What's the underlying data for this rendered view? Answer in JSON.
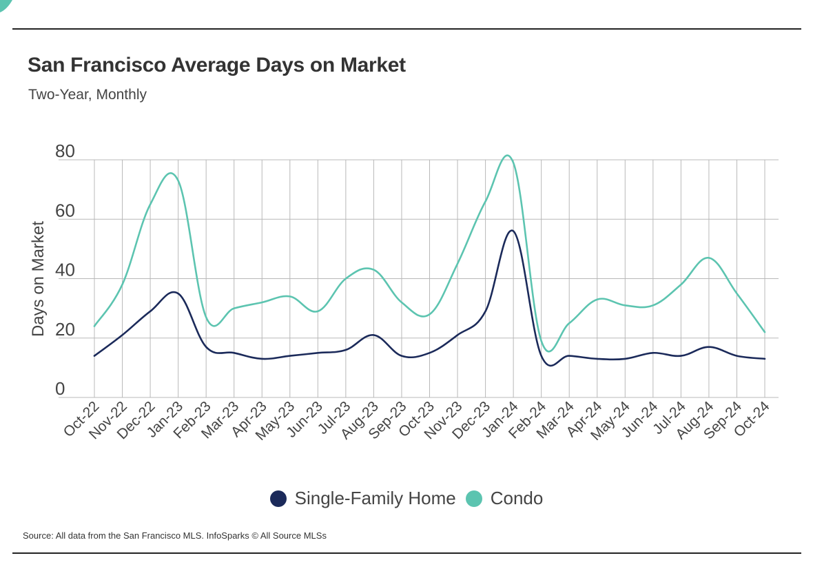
{
  "header": {
    "title": "San Francisco Average Days on Market",
    "subtitle": "Two-Year, Monthly"
  },
  "footer": {
    "source": "Source:  All data from the San Francisco MLS. InfoSparks © All Source MLSs"
  },
  "colors": {
    "single_family": "#1b2a5a",
    "condo": "#5cc4b0",
    "grid": "#b8b8b8",
    "corner_accent": "#5cc4b0"
  },
  "chart_data": {
    "type": "line",
    "title": "San Francisco Average Days on Market",
    "subtitle": "Two-Year, Monthly",
    "xlabel": "",
    "ylabel": "Days on Market",
    "ylim": [
      0,
      80
    ],
    "yticks": [
      "0",
      "20",
      "40",
      "60",
      "80"
    ],
    "grid": true,
    "legend_position": "bottom-center",
    "categories": [
      "Oct-22",
      "Nov-22",
      "Dec-22",
      "Jan-23",
      "Feb-23",
      "Mar-23",
      "Apr-23",
      "May-23",
      "Jun-23",
      "Jul-23",
      "Aug-23",
      "Sep-23",
      "Oct-23",
      "Nov-23",
      "Dec-23",
      "Jan-24",
      "Feb-24",
      "Mar-24",
      "Apr-24",
      "May-24",
      "Jun-24",
      "Jul-24",
      "Aug-24",
      "Sep-24",
      "Oct-24"
    ],
    "series": [
      {
        "name": "Single-Family Home",
        "color": "#1b2a5a",
        "values": [
          14,
          21,
          29,
          35,
          17,
          15,
          13,
          14,
          15,
          16,
          21,
          14,
          15,
          21,
          29,
          56,
          14,
          14,
          13,
          13,
          15,
          14,
          17,
          14,
          13
        ]
      },
      {
        "name": "Condo",
        "color": "#5cc4b0",
        "values": [
          24,
          38,
          65,
          73,
          27,
          30,
          32,
          34,
          29,
          40,
          43,
          32,
          28,
          45,
          66,
          79,
          19,
          25,
          33,
          31,
          31,
          38,
          47,
          35,
          22
        ]
      }
    ]
  }
}
